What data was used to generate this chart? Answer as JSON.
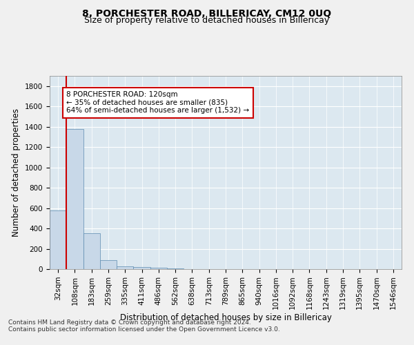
{
  "title": "8, PORCHESTER ROAD, BILLERICAY, CM12 0UQ",
  "subtitle": "Size of property relative to detached houses in Billericay",
  "xlabel": "Distribution of detached houses by size in Billericay",
  "ylabel": "Number of detached properties",
  "bar_labels": [
    "32sqm",
    "108sqm",
    "183sqm",
    "259sqm",
    "335sqm",
    "411sqm",
    "486sqm",
    "562sqm",
    "638sqm",
    "713sqm",
    "789sqm",
    "865sqm",
    "940sqm",
    "1016sqm",
    "1092sqm",
    "1168sqm",
    "1243sqm",
    "1319sqm",
    "1395sqm",
    "1470sqm",
    "1546sqm"
  ],
  "bar_values": [
    580,
    1380,
    350,
    90,
    30,
    20,
    15,
    10,
    3,
    2,
    1,
    1,
    0,
    0,
    0,
    0,
    0,
    0,
    0,
    0,
    0
  ],
  "bar_color": "#c8d8e8",
  "bar_edge_color": "#5a8ab0",
  "highlight_bar_index": 1,
  "highlight_color": "#cc0000",
  "annotation_text": "8 PORCHESTER ROAD: 120sqm\n← 35% of detached houses are smaller (835)\n64% of semi-detached houses are larger (1,532) →",
  "annotation_box_color": "#ffffff",
  "annotation_box_edge": "#cc0000",
  "ylim": [
    0,
    1900
  ],
  "yticks": [
    0,
    200,
    400,
    600,
    800,
    1000,
    1200,
    1400,
    1600,
    1800
  ],
  "background_color": "#dce8f0",
  "fig_background_color": "#f0f0f0",
  "footer_line1": "Contains HM Land Registry data © Crown copyright and database right 2024.",
  "footer_line2": "Contains public sector information licensed under the Open Government Licence v3.0.",
  "title_fontsize": 10,
  "subtitle_fontsize": 9,
  "xlabel_fontsize": 8.5,
  "ylabel_fontsize": 8.5,
  "tick_fontsize": 7.5,
  "annotation_fontsize": 7.5,
  "footer_fontsize": 6.5
}
